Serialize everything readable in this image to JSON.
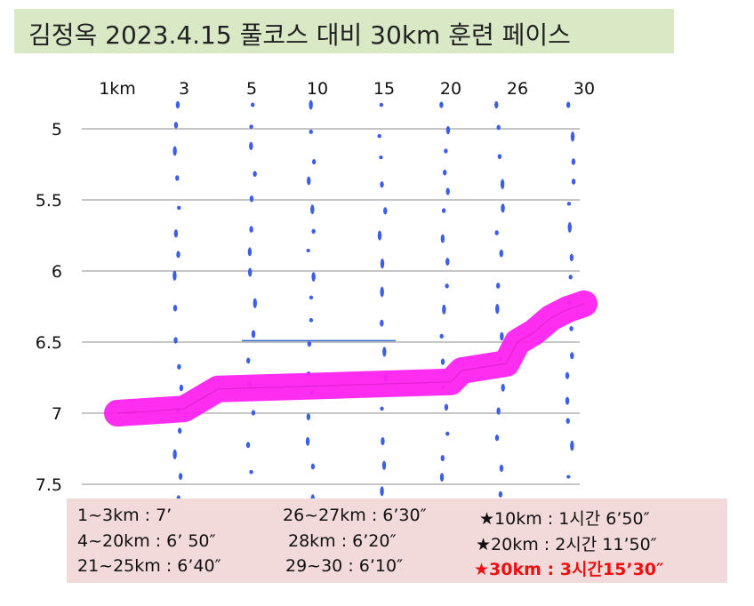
{
  "title": "김정옥 2023.4.15 풀코스 대비 30km 훈련 페이스",
  "chart_data": {
    "type": "line",
    "x_tick_labels": [
      "1km",
      "3",
      "5",
      "10",
      "15",
      "20",
      "26",
      "30"
    ],
    "y_ticks": [
      5,
      5.5,
      6,
      6.5,
      7,
      7.5
    ],
    "y_tick_labels": [
      "5",
      "5.5",
      "6",
      "6.5",
      "7",
      "7.5"
    ],
    "ylim": [
      4.75,
      7.5
    ],
    "y_inverted": true,
    "grid": true,
    "series": [
      {
        "color": "#ff22ee",
        "points": [
          {
            "km": 1,
            "pace": 7.0
          },
          {
            "km": 3,
            "pace": 6.97
          },
          {
            "km": 4,
            "pace": 6.83
          },
          {
            "km": 20,
            "pace": 6.78
          },
          {
            "km": 21,
            "pace": 6.7
          },
          {
            "km": 25,
            "pace": 6.65
          },
          {
            "km": 26,
            "pace": 6.5
          },
          {
            "km": 27,
            "pace": 6.43
          },
          {
            "km": 28,
            "pace": 6.33
          },
          {
            "km": 29,
            "pace": 6.27
          },
          {
            "km": 30,
            "pace": 6.23
          }
        ]
      }
    ],
    "reference_line_color": "#3a6fd0",
    "marker_color": "#3b5fe8"
  },
  "notes": {
    "col1": [
      "1~3km : 7’",
      "4~20km : 6’ 50″",
      "21~25km : 6’40″"
    ],
    "col2": [
      "26~27km : 6’30″",
      "28km : 6’20″",
      "29~30 : 6’10″"
    ],
    "col3": [
      "★10km : 1시간 6’50″",
      "★20km : 2시간 11’50″",
      "★30km : 3시간15’30″"
    ],
    "highlight_color": "#ee1010"
  }
}
